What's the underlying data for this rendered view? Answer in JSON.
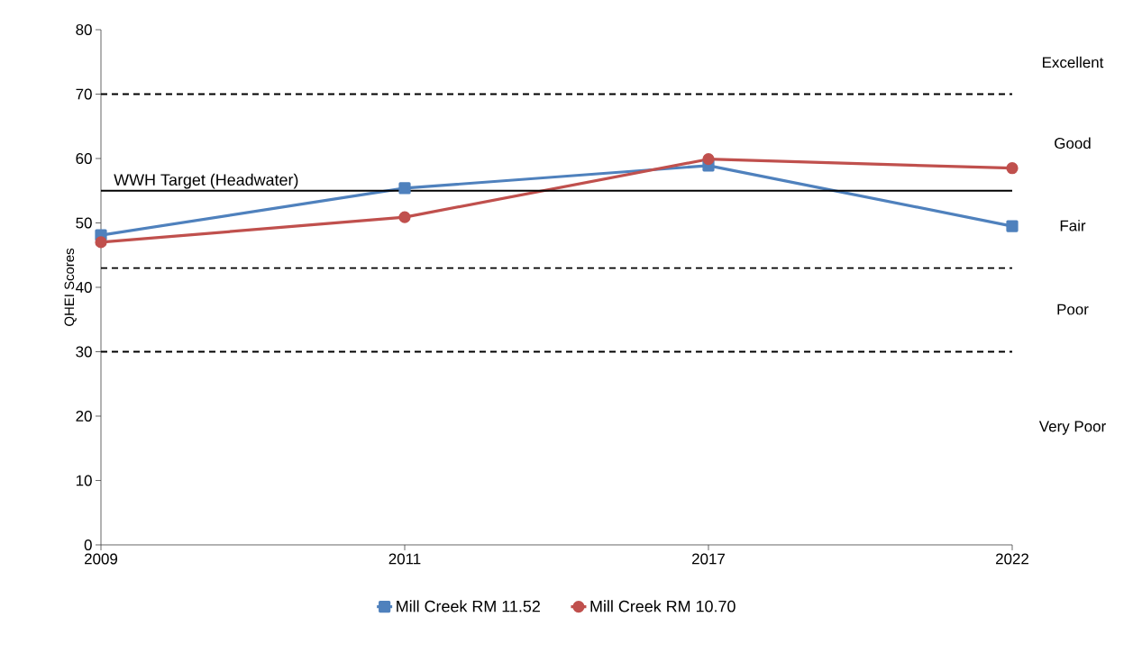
{
  "chart_data": {
    "type": "line",
    "ylabel": "QHEI Scores",
    "categories": [
      "2009",
      "2011",
      "2017",
      "2022"
    ],
    "series": [
      {
        "name": "Mill Creek RM 11.52",
        "color": "#4f81bd",
        "marker": "square",
        "values": [
          48.1,
          55.4,
          58.9,
          49.5
        ]
      },
      {
        "name": "Mill Creek RM 10.70",
        "color": "#c0504d",
        "marker": "circle",
        "values": [
          47.0,
          50.9,
          59.9,
          58.5
        ]
      }
    ],
    "ylim": [
      0,
      80
    ],
    "yticks": [
      0,
      10,
      20,
      30,
      40,
      50,
      60,
      70,
      80
    ],
    "ref_lines": [
      {
        "axis": "y",
        "value": 70,
        "color": "#000000",
        "line_style": "dashed"
      },
      {
        "axis": "y",
        "value": 43,
        "color": "#000000",
        "line_style": "dashed"
      },
      {
        "axis": "y",
        "value": 30,
        "color": "#000000",
        "line_style": "dashed"
      },
      {
        "axis": "y",
        "value": 55,
        "color": "#000000",
        "line_style": "solid",
        "label": "WWH Target (Headwater)"
      }
    ],
    "annotations": [
      "Excellent",
      "Good",
      "Fair",
      "Poor",
      "Very Poor"
    ],
    "grid": false,
    "legend": "bottom",
    "line_style": "solid"
  }
}
